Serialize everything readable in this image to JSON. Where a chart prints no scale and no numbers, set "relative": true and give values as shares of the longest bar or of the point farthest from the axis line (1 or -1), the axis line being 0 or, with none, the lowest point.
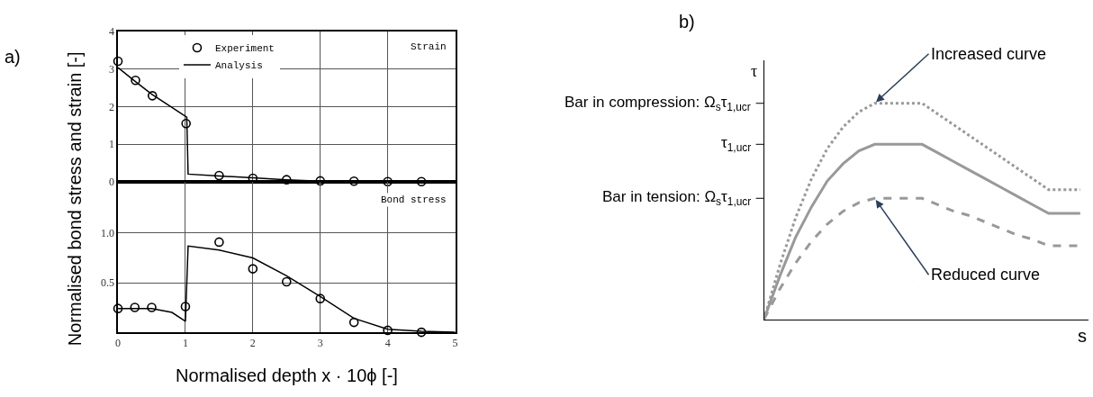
{
  "chart_data": [
    {
      "type": "line",
      "title": "Strain",
      "ylabel": "Normalised bond stress and strain [-]",
      "annotations": [
        "a)"
      ],
      "xlim": [
        0,
        5
      ],
      "xticks": [
        0,
        1,
        2,
        3,
        4,
        5
      ],
      "ylim": [
        0,
        4
      ],
      "yticks": [
        0,
        1,
        2,
        3,
        4
      ],
      "tick_labels": "y",
      "grid": true,
      "legend": "top left",
      "series": [
        {
          "name": "Experiment",
          "type": "scatter",
          "marker": "circle",
          "color": "#000000",
          "x": [
            0,
            0.26,
            0.51,
            1.01,
            1.5,
            2.0,
            2.5,
            3.0,
            3.5,
            4.0,
            4.5
          ],
          "values": [
            3.21,
            2.7,
            2.29,
            1.55,
            0.16,
            0.09,
            0.05,
            0.02,
            0.01,
            0,
            0
          ]
        },
        {
          "name": "Analysis",
          "type": "line",
          "color": "#000000",
          "x": [
            0,
            0.25,
            0.5,
            0.75,
            1.02,
            1.04,
            1.5,
            2.0,
            2.5,
            3.0,
            3.5,
            4.0,
            5.0
          ],
          "values": [
            3.04,
            2.68,
            2.33,
            2.04,
            1.72,
            0.2,
            0.15,
            0.1,
            0.05,
            0.01,
            0,
            0,
            0
          ]
        }
      ]
    },
    {
      "type": "line",
      "title": "Bond stress",
      "xlabel": "Normalised depth x · 10ϕ [-]",
      "xlim": [
        0,
        5
      ],
      "xticks": [
        0,
        1,
        2,
        3,
        4,
        5
      ],
      "ylim": [
        0,
        1.52
      ],
      "yticks": [
        {
          "value": 0.5,
          "label": "0.5"
        },
        {
          "value": 1.0,
          "label": "1.0"
        }
      ],
      "grid": true,
      "series": [
        {
          "type": "scatter",
          "marker": "circle",
          "color": "#000000",
          "x": [
            0,
            0.25,
            0.5,
            1.0,
            1.5,
            2.0,
            2.5,
            3.0,
            3.5,
            4.0,
            4.5
          ],
          "values": [
            0.24,
            0.25,
            0.25,
            0.26,
            0.91,
            0.64,
            0.51,
            0.34,
            0.1,
            0.02,
            0
          ]
        },
        {
          "type": "line",
          "color": "#000000",
          "x": [
            0,
            0.25,
            0.5,
            0.8,
            1.0,
            1.04,
            1.5,
            2.0,
            2.5,
            3.0,
            3.5,
            4.0,
            4.5,
            5.0
          ],
          "values": [
            0.24,
            0.24,
            0.24,
            0.2,
            0.11,
            0.87,
            0.83,
            0.75,
            0.57,
            0.36,
            0.14,
            0.03,
            0.01,
            0
          ]
        }
      ]
    },
    {
      "type": "line",
      "relative": true,
      "xlabel": "s",
      "ylabel": "τ",
      "grid": false,
      "annotations": [
        "b)",
        "Bar in compression: Ω$_{s}$τ$_{1,ucr}$",
        "τ$_{1,ucr}$",
        "Bar in tension: Ω$_{s}$τ$_{1,ucr}$"
      ],
      "categories": [
        null,
        null,
        null,
        null,
        null,
        null,
        null,
        null,
        null,
        null,
        null,
        null,
        null,
        null,
        null,
        null,
        null,
        null,
        null,
        null,
        null
      ],
      "series": [
        {
          "name": "Increased curve",
          "color": "#999999",
          "line_style": "dotted",
          "values": [
            0,
            0.25,
            0.47,
            0.65,
            0.79,
            0.89,
            0.96,
            1.0,
            1.0,
            1.0,
            1.0,
            0.95,
            0.9,
            0.85,
            0.8,
            0.75,
            0.7,
            0.65,
            0.6,
            0.6,
            0.6
          ]
        },
        {
          "color": "#999999",
          "line_style": "solid",
          "values": [
            0,
            0.2,
            0.38,
            0.52,
            0.64,
            0.72,
            0.78,
            0.81,
            0.81,
            0.81,
            0.81,
            0.77,
            0.73,
            0.69,
            0.65,
            0.61,
            0.57,
            0.53,
            0.49,
            0.49,
            0.49
          ]
        },
        {
          "name": "Reduced curve",
          "color": "#999999",
          "line_style": "dashed",
          "values": [
            0,
            0.14,
            0.26,
            0.36,
            0.44,
            0.5,
            0.54,
            0.56,
            0.56,
            0.56,
            0.56,
            0.53,
            0.5,
            0.48,
            0.45,
            0.42,
            0.39,
            0.37,
            0.34,
            0.34,
            0.34
          ]
        }
      ]
    }
  ]
}
